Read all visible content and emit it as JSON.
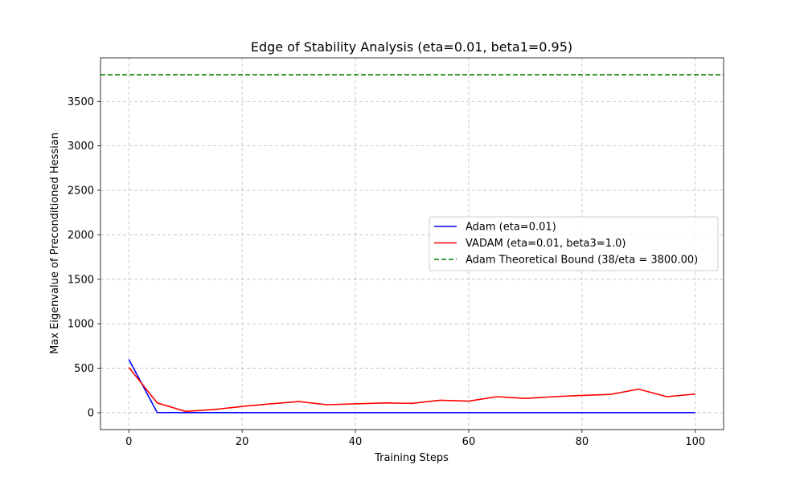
{
  "chart_data": {
    "type": "line",
    "title": "Edge of Stability Analysis (eta=0.01, beta1=0.95)",
    "xlabel": "Training Steps",
    "ylabel": "Max Eigenvalue of Preconditioned Hessian",
    "xlim": [
      -5,
      105
    ],
    "ylim": [
      -190,
      3990
    ],
    "x_ticks": [
      "0",
      "20",
      "40",
      "60",
      "80",
      "100"
    ],
    "x_tick_values": [
      0,
      20,
      40,
      60,
      80,
      100
    ],
    "y_ticks": [
      "0",
      "500",
      "1000",
      "1500",
      "2000",
      "2500",
      "3000",
      "3500"
    ],
    "y_tick_values": [
      0,
      500,
      1000,
      1500,
      2000,
      2500,
      3000,
      3500
    ],
    "grid": true,
    "legend_position": "center-right",
    "series": [
      {
        "name": "Adam (eta=0.01)",
        "color": "#0000ff",
        "style": "solid",
        "x": [
          0,
          5,
          10,
          15,
          20,
          25,
          30,
          35,
          40,
          45,
          50,
          55,
          60,
          65,
          70,
          75,
          80,
          85,
          90,
          95,
          100
        ],
        "values": [
          600,
          2,
          1,
          1,
          1,
          1,
          1,
          1,
          1,
          1,
          1,
          1,
          1,
          1,
          1,
          1,
          1,
          1,
          1,
          1,
          1
        ]
      },
      {
        "name": "VADAM (eta=0.01, beta3=1.0)",
        "color": "#ff0000",
        "style": "solid",
        "x": [
          0,
          5,
          10,
          15,
          20,
          25,
          30,
          35,
          40,
          45,
          50,
          55,
          60,
          65,
          70,
          75,
          80,
          85,
          90,
          95,
          100
        ],
        "values": [
          510,
          110,
          15,
          35,
          70,
          100,
          125,
          90,
          100,
          110,
          105,
          140,
          130,
          180,
          160,
          180,
          195,
          205,
          265,
          180,
          210
        ]
      }
    ],
    "reference_lines": [
      {
        "name": "Adam Theoretical Bound (38/eta = 3800.00)",
        "color": "#008000",
        "style": "dashed",
        "y": 3800
      }
    ]
  }
}
